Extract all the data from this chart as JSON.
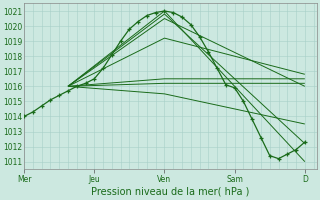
{
  "xlabel": "Pression niveau de la mer( hPa )",
  "ylim": [
    1010.5,
    1021.5
  ],
  "yticks": [
    1011,
    1012,
    1013,
    1014,
    1015,
    1016,
    1017,
    1018,
    1019,
    1020,
    1021
  ],
  "day_labels": [
    "Mer",
    "Jeu",
    "Ven",
    "Sam",
    "D"
  ],
  "day_positions": [
    0,
    24,
    48,
    72,
    96
  ],
  "xlim": [
    0,
    100
  ],
  "background_color": "#cce8e0",
  "grid_color": "#a8cfc8",
  "line_color": "#1a6b1a",
  "marker_color": "#1a6b1a",
  "fig_bg": "#cce8e0",
  "ensemble_lines": [
    {
      "x": [
        15,
        48,
        96
      ],
      "y": [
        1016.0,
        1021.0,
        1011.0
      ]
    },
    {
      "x": [
        15,
        48,
        96
      ],
      "y": [
        1016.0,
        1020.8,
        1012.2
      ]
    },
    {
      "x": [
        15,
        48,
        96
      ],
      "y": [
        1016.0,
        1020.5,
        1016.0
      ]
    },
    {
      "x": [
        15,
        48,
        96
      ],
      "y": [
        1016.0,
        1019.2,
        1016.8
      ]
    },
    {
      "x": [
        15,
        48,
        96
      ],
      "y": [
        1016.0,
        1016.5,
        1016.5
      ]
    },
    {
      "x": [
        15,
        48,
        96
      ],
      "y": [
        1016.0,
        1016.2,
        1016.2
      ]
    },
    {
      "x": [
        15,
        48,
        96
      ],
      "y": [
        1016.0,
        1015.5,
        1013.5
      ]
    }
  ],
  "main_curve_x": [
    0,
    3,
    6,
    9,
    12,
    15,
    18,
    21,
    24,
    27,
    30,
    33,
    36,
    39,
    42,
    45,
    48,
    51,
    54,
    57,
    60,
    63,
    66,
    69,
    72,
    75,
    78,
    81,
    84,
    87,
    90,
    93,
    96
  ],
  "main_curve_y": [
    1014.0,
    1014.3,
    1014.7,
    1015.1,
    1015.4,
    1015.7,
    1016.0,
    1016.2,
    1016.5,
    1017.2,
    1018.1,
    1019.0,
    1019.8,
    1020.3,
    1020.7,
    1020.9,
    1021.0,
    1020.9,
    1020.6,
    1020.1,
    1019.3,
    1018.3,
    1017.2,
    1016.1,
    1015.9,
    1015.0,
    1013.8,
    1012.6,
    1011.4,
    1011.2,
    1011.5,
    1011.8,
    1012.3
  ],
  "ylabel_fontsize": 5.5,
  "xlabel_fontsize": 7.0,
  "tick_label_fontsize": 5.5
}
